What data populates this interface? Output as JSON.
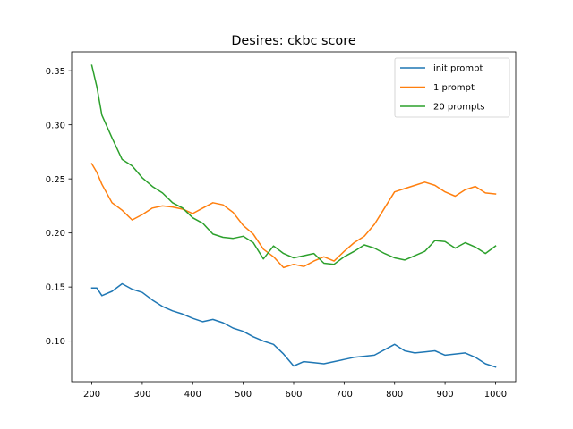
{
  "chart_data": {
    "type": "line",
    "title": "Desires: ckbc score",
    "xlabel": "",
    "ylabel": "",
    "xlim": [
      160,
      1040
    ],
    "ylim": [
      0.0625,
      0.3675
    ],
    "x_ticks": [
      200,
      300,
      400,
      500,
      600,
      700,
      800,
      900,
      1000
    ],
    "x_tick_labels": [
      "200",
      "300",
      "400",
      "500",
      "600",
      "700",
      "800",
      "900",
      "1000"
    ],
    "y_ticks": [
      0.1,
      0.15,
      0.2,
      0.25,
      0.3,
      0.35
    ],
    "y_tick_labels": [
      "0.10",
      "0.15",
      "0.20",
      "0.25",
      "0.30",
      "0.35"
    ],
    "grid": false,
    "legend_position": "upper right",
    "x": [
      200,
      210,
      220,
      240,
      260,
      280,
      300,
      320,
      340,
      360,
      380,
      400,
      420,
      440,
      460,
      480,
      500,
      520,
      540,
      560,
      580,
      600,
      620,
      640,
      660,
      680,
      700,
      720,
      740,
      760,
      780,
      800,
      820,
      840,
      860,
      880,
      900,
      920,
      940,
      960,
      980,
      1000
    ],
    "series": [
      {
        "name": "init prompt",
        "color": "#1f77b4",
        "values": [
          0.149,
          0.149,
          0.142,
          0.146,
          0.153,
          0.148,
          0.145,
          0.138,
          0.132,
          0.128,
          0.125,
          0.121,
          0.118,
          0.12,
          0.117,
          0.112,
          0.109,
          0.104,
          0.1,
          0.097,
          0.088,
          0.077,
          0.081,
          0.08,
          0.079,
          0.081,
          0.083,
          0.085,
          0.086,
          0.087,
          0.092,
          0.097,
          0.091,
          0.089,
          0.09,
          0.091,
          0.087,
          0.088,
          0.089,
          0.085,
          0.079,
          0.076
        ]
      },
      {
        "name": "1 prompt",
        "color": "#ff7f0e",
        "values": [
          0.264,
          0.256,
          0.245,
          0.228,
          0.221,
          0.212,
          0.217,
          0.223,
          0.225,
          0.224,
          0.222,
          0.218,
          0.223,
          0.228,
          0.226,
          0.219,
          0.207,
          0.199,
          0.185,
          0.178,
          0.168,
          0.171,
          0.169,
          0.174,
          0.178,
          0.174,
          0.183,
          0.191,
          0.197,
          0.208,
          0.223,
          0.238,
          0.241,
          0.244,
          0.247,
          0.244,
          0.238,
          0.234,
          0.24,
          0.243,
          0.237,
          0.236
        ]
      },
      {
        "name": "20 prompts",
        "color": "#2ca02c",
        "values": [
          0.355,
          0.335,
          0.309,
          0.288,
          0.268,
          0.262,
          0.251,
          0.243,
          0.237,
          0.228,
          0.223,
          0.214,
          0.209,
          0.199,
          0.196,
          0.195,
          0.197,
          0.191,
          0.176,
          0.188,
          0.181,
          0.177,
          0.179,
          0.181,
          0.172,
          0.171,
          0.178,
          0.183,
          0.189,
          0.186,
          0.181,
          0.177,
          0.175,
          0.179,
          0.183,
          0.193,
          0.192,
          0.186,
          0.191,
          0.187,
          0.181,
          0.188
        ]
      }
    ]
  }
}
